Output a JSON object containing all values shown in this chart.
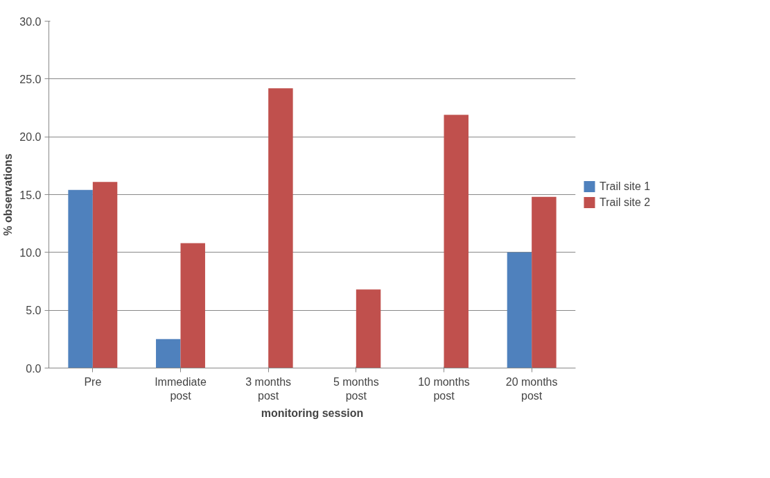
{
  "chart_data": {
    "type": "bar",
    "xlabel": "monitoring session",
    "ylabel": "% observations",
    "categories": [
      "Pre",
      "Immediate post",
      "3 months post",
      "5 months post",
      "10 months post",
      "20 months post"
    ],
    "series": [
      {
        "name": "Trail site 1",
        "color": "#4f81bd",
        "values": [
          15.4,
          2.5,
          0,
          0,
          0,
          10.0
        ]
      },
      {
        "name": "Trail site 2",
        "color": "#c0504d",
        "values": [
          16.1,
          10.8,
          24.2,
          6.8,
          21.9,
          14.8
        ]
      }
    ],
    "ylim": [
      0,
      30
    ],
    "yticks": [
      {
        "value": 0,
        "label": "0.0"
      },
      {
        "value": 5,
        "label": "5.0"
      },
      {
        "value": 10,
        "label": "10.0"
      },
      {
        "value": 15,
        "label": "15.0"
      },
      {
        "value": 20,
        "label": "20.0"
      },
      {
        "value": 25,
        "label": "25.0"
      },
      {
        "value": 30,
        "label": "30.0"
      }
    ],
    "grid": "y",
    "legend": "right"
  }
}
